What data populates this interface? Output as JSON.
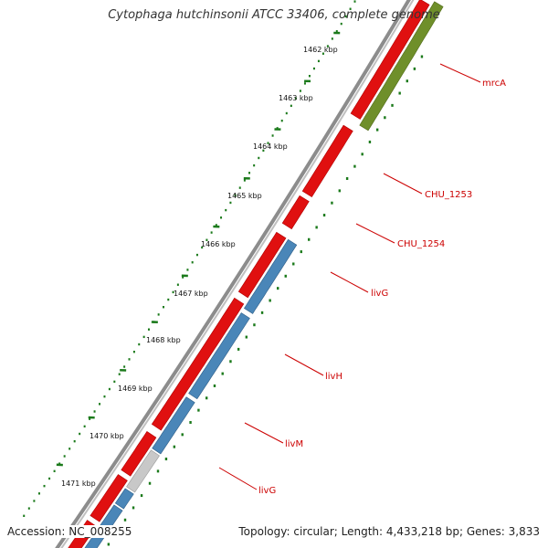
{
  "title": "Cytophaga hutchinsonii ATCC 33406, complete genome",
  "footer": {
    "accession": "Accession: NC_008255",
    "summary": "Topology: circular; Length: 4,433,218 bp; Genes: 3,833"
  },
  "colors": {
    "backbone": "#8c8c8c",
    "forward_gene": "#e01010",
    "reverse_gene_blue": "#4a86b8",
    "reverse_gene_olive": "#6f8f2a",
    "reverse_gene_grey": "#c8c8c8",
    "tick": "#1b7a1b",
    "label": "#cc0000"
  },
  "ruler_labels": [
    "1462 kbp",
    "1463 kbp",
    "1464 kbp",
    "1465 kbp",
    "1466 kbp",
    "1467 kbp",
    "1468 kbp",
    "1469 kbp",
    "1470 kbp",
    "1471 kbp"
  ],
  "gene_labels": [
    "mrcA",
    "CHU_1253",
    "CHU_1254",
    "livG",
    "livH",
    "livM",
    "livG"
  ]
}
